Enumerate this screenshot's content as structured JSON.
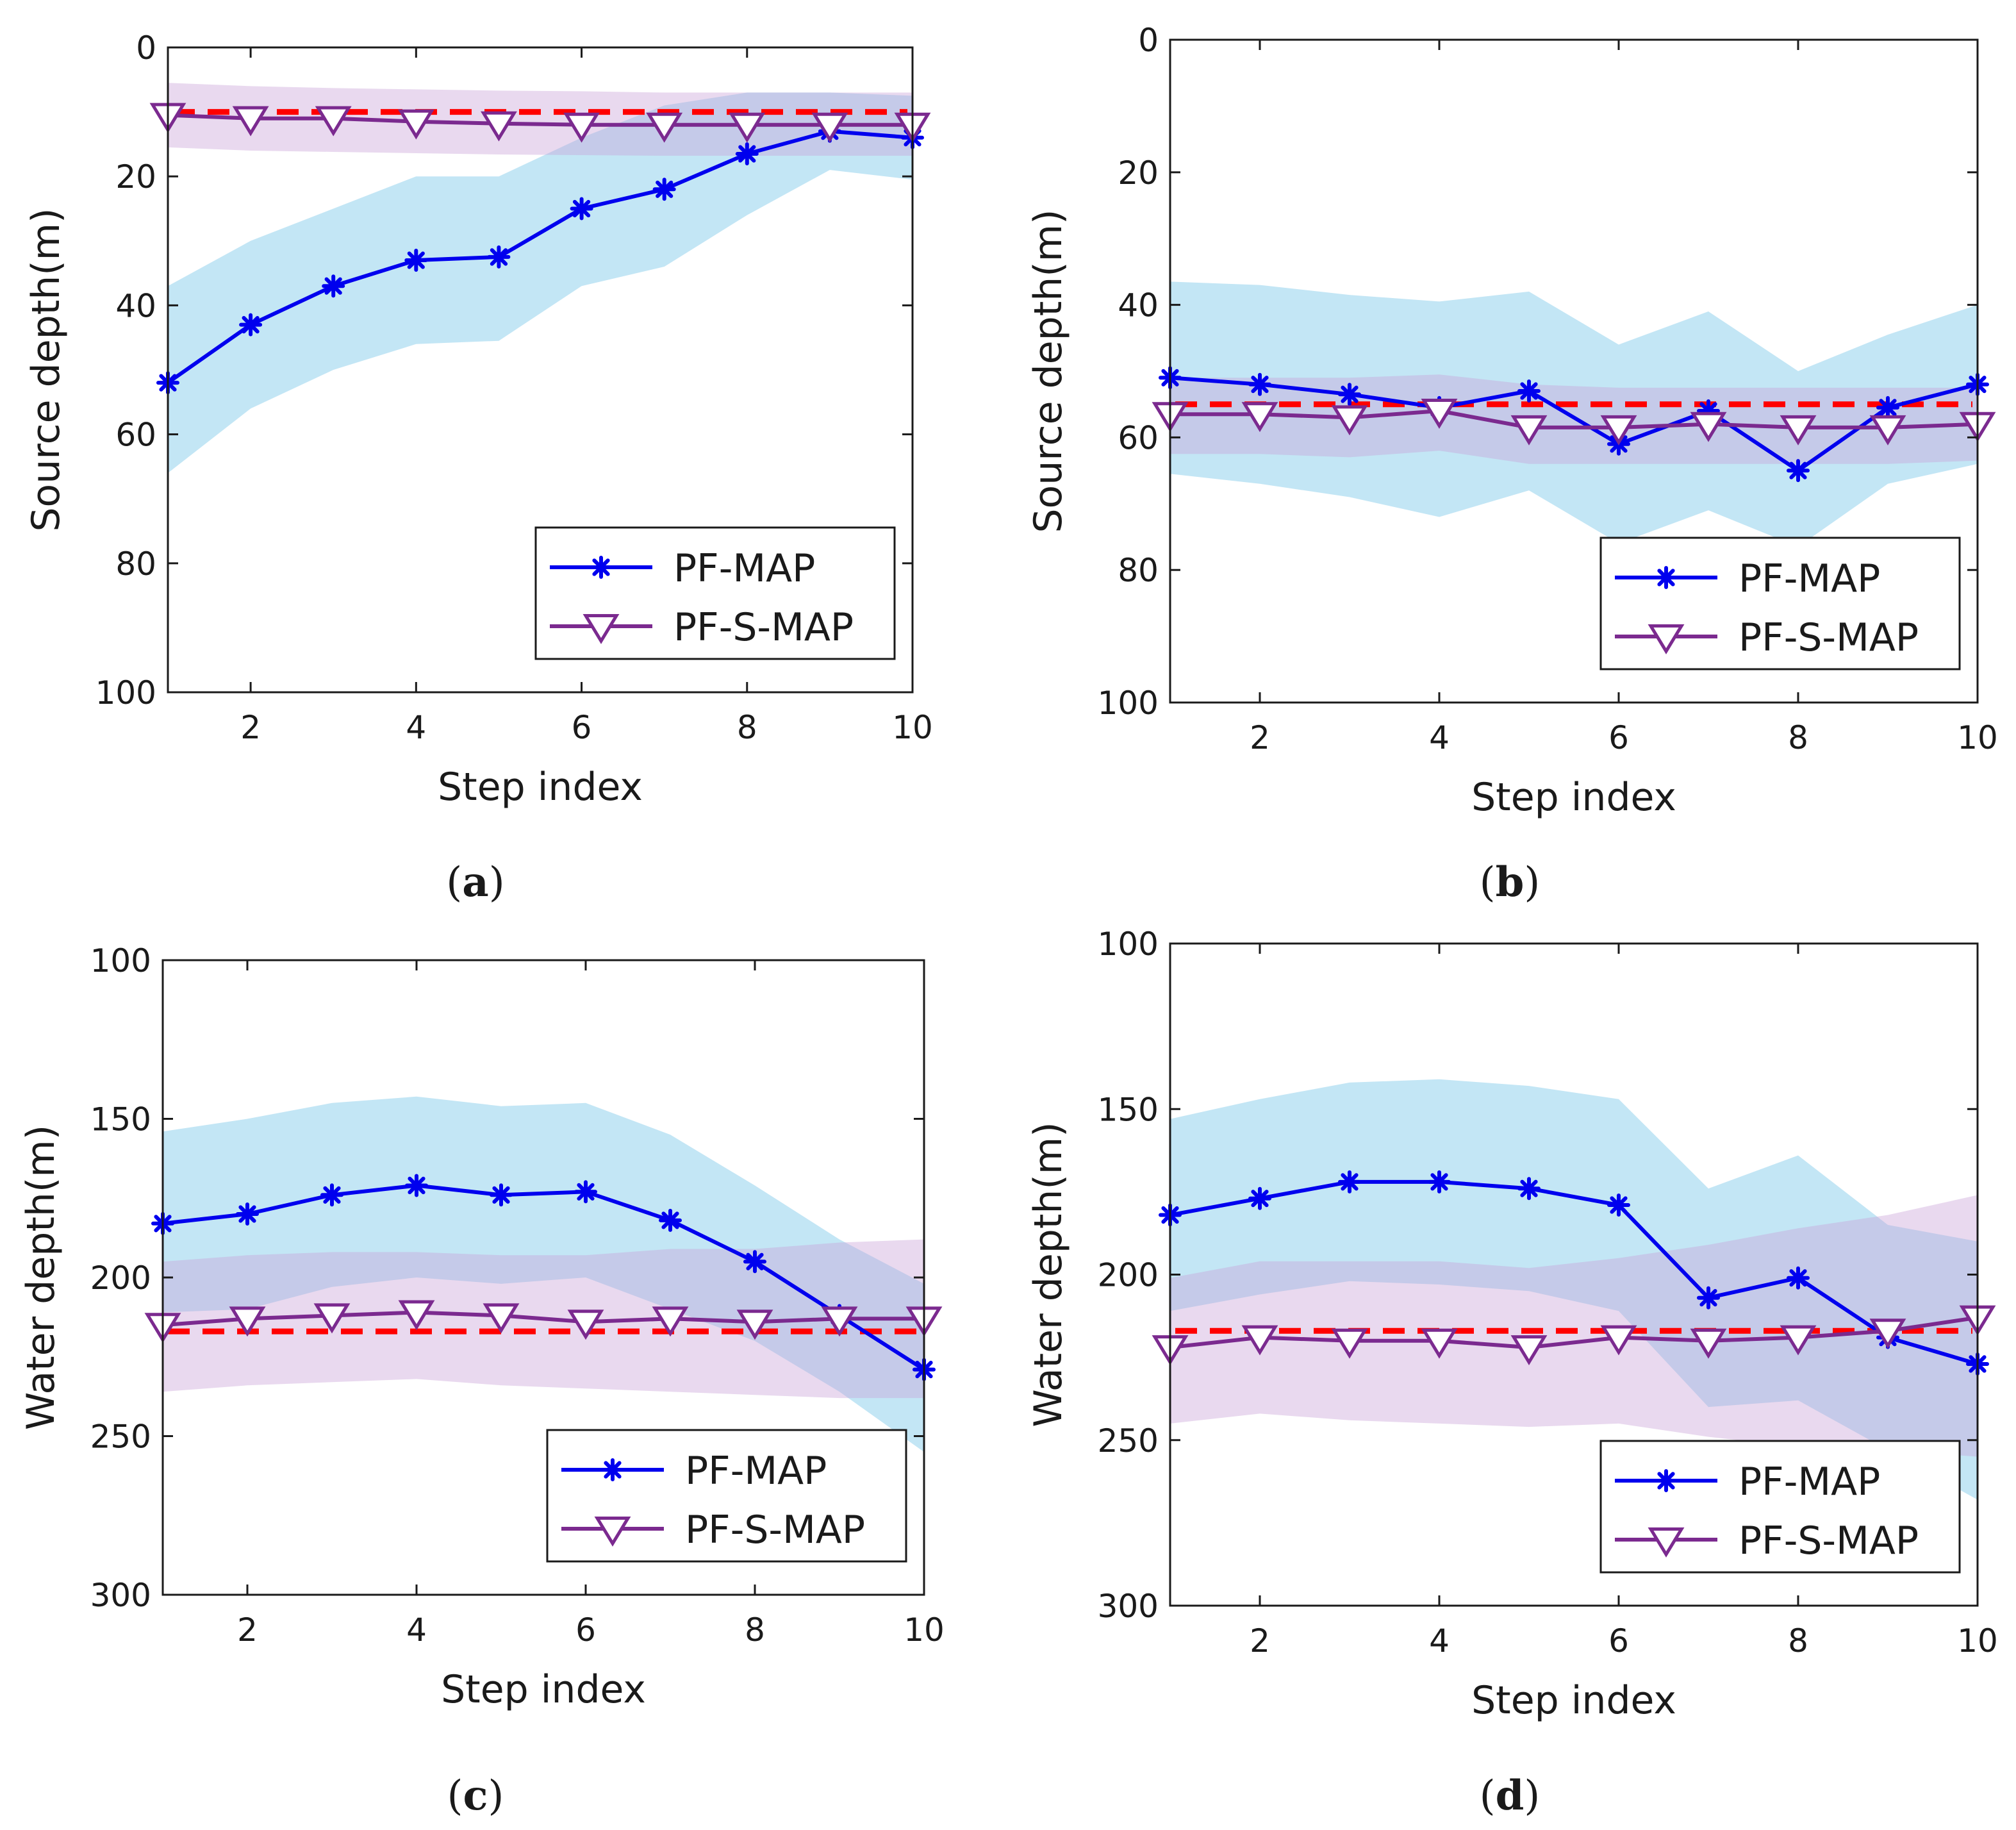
{
  "chart_data": [
    {
      "panel": "a",
      "caption_letter": "a",
      "type": "line",
      "xlabel": "Step index",
      "ylabel": "Source depth(m)",
      "xlim": [
        1,
        10
      ],
      "ylim": [
        0,
        100
      ],
      "y_reversed": true,
      "xticks": [
        2,
        4,
        6,
        8,
        10
      ],
      "yticks": [
        0,
        20,
        40,
        60,
        80,
        100
      ],
      "legend_position": "bottom-right",
      "true_value": 10,
      "x": [
        1,
        2,
        3,
        4,
        5,
        6,
        7,
        8,
        9,
        10
      ],
      "series": [
        {
          "name": "PF-MAP",
          "color": "#0000ee",
          "marker": "asterisk",
          "values": [
            52,
            43,
            37,
            33,
            32.5,
            25,
            22,
            16.5,
            13,
            14
          ],
          "band_color": "#87ceeb",
          "band_lower": [
            37,
            30,
            25,
            20,
            20,
            14,
            9,
            7,
            7,
            7.5
          ],
          "band_upper": [
            66,
            56,
            50,
            46,
            45.5,
            37,
            34,
            26,
            19,
            20.5
          ]
        },
        {
          "name": "PF-S-MAP",
          "color": "#7b2a8f",
          "marker": "triangle-down",
          "values": [
            10.5,
            11,
            11,
            11.5,
            11.8,
            12,
            12,
            12,
            12,
            12
          ],
          "band_color": "#c9a0d6",
          "band_lower": [
            5.5,
            6,
            6.3,
            6.5,
            6.7,
            6.8,
            7,
            7,
            7,
            7
          ],
          "band_upper": [
            15.5,
            16,
            16.2,
            16.4,
            16.6,
            16.7,
            16.8,
            16.8,
            16.8,
            16.8
          ]
        }
      ]
    },
    {
      "panel": "b",
      "caption_letter": "b",
      "type": "line",
      "xlabel": "Step index",
      "ylabel": "Source depth(m)",
      "xlim": [
        1,
        10
      ],
      "ylim": [
        0,
        100
      ],
      "y_reversed": true,
      "xticks": [
        2,
        4,
        6,
        8,
        10
      ],
      "yticks": [
        0,
        20,
        40,
        60,
        80,
        100
      ],
      "legend_position": "bottom-right",
      "true_value": 55,
      "x": [
        1,
        2,
        3,
        4,
        5,
        6,
        7,
        8,
        9,
        10
      ],
      "series": [
        {
          "name": "PF-MAP",
          "color": "#0000ee",
          "marker": "asterisk",
          "values": [
            51,
            52,
            53.5,
            55.5,
            53,
            61,
            56,
            65,
            55.5,
            52
          ],
          "band_color": "#87ceeb",
          "band_lower": [
            36.5,
            37,
            38.5,
            39.5,
            38,
            46,
            41,
            50,
            44.5,
            40
          ],
          "band_upper": [
            65.5,
            67,
            69,
            72,
            68,
            76,
            71,
            76.5,
            67,
            64
          ]
        },
        {
          "name": "PF-S-MAP",
          "color": "#7b2a8f",
          "marker": "triangle-down",
          "values": [
            56.5,
            56.5,
            57,
            56,
            58.5,
            58.5,
            58,
            58.5,
            58.5,
            58
          ],
          "band_color": "#c9a0d6",
          "band_lower": [
            51,
            51,
            51,
            50.5,
            52,
            52.5,
            52.5,
            52.5,
            52.5,
            52.5
          ],
          "band_upper": [
            62.5,
            62.5,
            63,
            62,
            64,
            64,
            64,
            64,
            64,
            63.5
          ]
        }
      ]
    },
    {
      "panel": "c",
      "caption_letter": "c",
      "type": "line",
      "xlabel": "Step index",
      "ylabel": "Water depth(m)",
      "xlim": [
        1,
        10
      ],
      "ylim": [
        100,
        300
      ],
      "y_reversed": true,
      "xticks": [
        2,
        4,
        6,
        8,
        10
      ],
      "yticks": [
        100,
        150,
        200,
        250,
        300
      ],
      "legend_position": "bottom-right",
      "true_value": 217,
      "x": [
        1,
        2,
        3,
        4,
        5,
        6,
        7,
        8,
        9,
        10
      ],
      "series": [
        {
          "name": "PF-MAP",
          "color": "#0000ee",
          "marker": "asterisk",
          "values": [
            183,
            180,
            174,
            171,
            174,
            173,
            182,
            195,
            212,
            229
          ],
          "band_color": "#87ceeb",
          "band_lower": [
            154,
            150,
            145,
            143,
            146,
            145,
            155,
            171,
            188,
            202
          ],
          "band_upper": [
            211,
            210,
            203,
            200,
            202,
            200,
            210,
            220,
            236,
            255
          ]
        },
        {
          "name": "PF-S-MAP",
          "color": "#7b2a8f",
          "marker": "triangle-down",
          "values": [
            215,
            213,
            212,
            211,
            212,
            214,
            213,
            214,
            213,
            213
          ],
          "band_color": "#c9a0d6",
          "band_lower": [
            195,
            193,
            192,
            192,
            193,
            193,
            191,
            191,
            189,
            188
          ],
          "band_upper": [
            236,
            234,
            233,
            232,
            234,
            235,
            236,
            237,
            238,
            238
          ]
        }
      ]
    },
    {
      "panel": "d",
      "caption_letter": "d",
      "type": "line",
      "xlabel": "Step index",
      "ylabel": "Water depth(m)",
      "xlim": [
        1,
        10
      ],
      "ylim": [
        100,
        300
      ],
      "y_reversed": true,
      "xticks": [
        2,
        4,
        6,
        8,
        10
      ],
      "yticks": [
        100,
        150,
        200,
        250,
        300
      ],
      "legend_position": "bottom-right",
      "true_value": 217,
      "x": [
        1,
        2,
        3,
        4,
        5,
        6,
        7,
        8,
        9,
        10
      ],
      "series": [
        {
          "name": "PF-MAP",
          "color": "#0000ee",
          "marker": "asterisk",
          "values": [
            182,
            177,
            172,
            172,
            174,
            179,
            207,
            201,
            219,
            227
          ],
          "band_color": "#87ceeb",
          "band_lower": [
            153,
            147,
            142,
            141,
            143,
            147,
            174,
            164,
            185,
            190
          ],
          "band_upper": [
            211,
            206,
            202,
            203,
            205,
            211,
            240,
            238,
            253,
            268
          ]
        },
        {
          "name": "PF-S-MAP",
          "color": "#7b2a8f",
          "marker": "triangle-down",
          "values": [
            222,
            219,
            220,
            220,
            222,
            219,
            220,
            219,
            217,
            213
          ],
          "band_color": "#c9a0d6",
          "band_lower": [
            201,
            196,
            196,
            196,
            198,
            195,
            191,
            186,
            182,
            176
          ],
          "band_upper": [
            245,
            242,
            244,
            245,
            246,
            245,
            249,
            252,
            253,
            255
          ]
        }
      ]
    }
  ],
  "colors": {
    "true_line": "#ff0000",
    "axis": "#1a1a1a"
  }
}
